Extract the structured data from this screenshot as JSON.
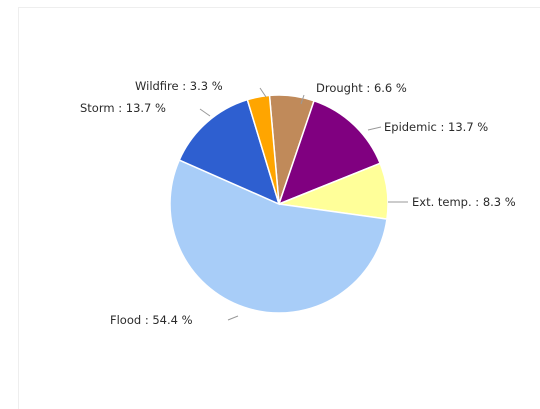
{
  "chart_data": {
    "type": "pie",
    "slices": [
      {
        "name": "Drought",
        "value": 6.6,
        "label": "Drought : 6.6 %",
        "color": "#c08a5a"
      },
      {
        "name": "Epidemic",
        "value": 13.7,
        "label": "Epidemic : 13.7 %",
        "color": "#800080"
      },
      {
        "name": "Ext. temp.",
        "value": 8.3,
        "label": "Ext. temp. : 8.3 %",
        "color": "#ffff99"
      },
      {
        "name": "Flood",
        "value": 54.4,
        "label": "Flood : 54.4 %",
        "color": "#a8cdf8"
      },
      {
        "name": "Storm",
        "value": 13.7,
        "label": "Storm : 13.7 %",
        "color": "#2e5fd0"
      },
      {
        "name": "Wildfire",
        "value": 3.3,
        "label": "Wildfire : 3.3 %",
        "color": "#ffa500"
      }
    ],
    "legend": "none"
  }
}
